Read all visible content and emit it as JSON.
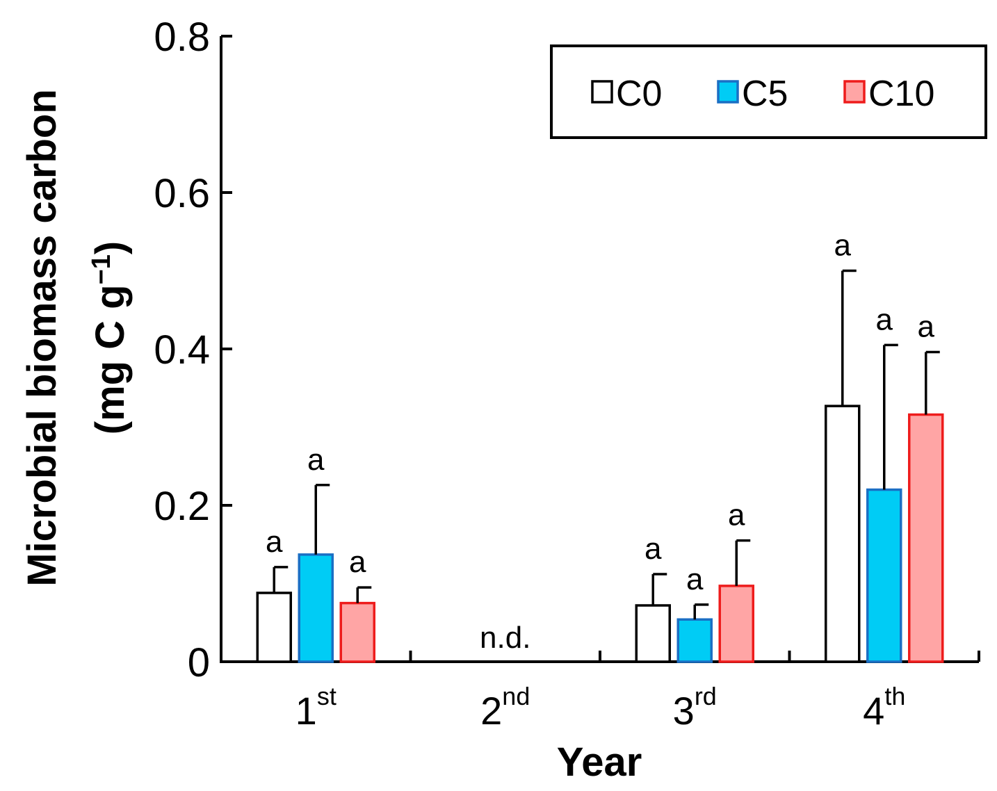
{
  "chart_data": {
    "type": "bar",
    "title": "",
    "xlabel": "Year",
    "ylabel": "Microbial biomass carbon",
    "ylabel_unit": "(mg C g",
    "ylabel_unit_exp": "−1",
    "ylabel_unit_close": ")",
    "ylim": [
      0,
      0.8
    ],
    "yticks": [
      {
        "value": 0,
        "label": "0"
      },
      {
        "value": 0.2,
        "label": "0.2"
      },
      {
        "value": 0.4,
        "label": "0.4"
      },
      {
        "value": 0.6,
        "label": "0.6"
      },
      {
        "value": 0.8,
        "label": "0.8"
      }
    ],
    "categories": [
      {
        "base": "1",
        "sup": "st"
      },
      {
        "base": "2",
        "sup": "nd"
      },
      {
        "base": "3",
        "sup": "rd"
      },
      {
        "base": "4",
        "sup": "th"
      }
    ],
    "category_notes": [
      null,
      "n.d.",
      null,
      null
    ],
    "series": [
      {
        "name": "C0",
        "fill": "#ffffff",
        "stroke": "#000000",
        "values": [
          0.088,
          null,
          0.072,
          0.327
        ],
        "errors": [
          0.033,
          null,
          0.04,
          0.173
        ],
        "significance": [
          "a",
          null,
          "a",
          "a"
        ]
      },
      {
        "name": "C5",
        "fill": "#00ccf5",
        "stroke": "#1a6fc4",
        "values": [
          0.137,
          null,
          0.054,
          0.22
        ],
        "errors": [
          0.089,
          null,
          0.019,
          0.185
        ],
        "significance": [
          "a",
          null,
          "a",
          "a"
        ]
      },
      {
        "name": "C10",
        "fill": "#ffa5a5",
        "stroke": "#ee1c1c",
        "values": [
          0.075,
          null,
          0.097,
          0.316
        ],
        "errors": [
          0.02,
          null,
          0.058,
          0.08
        ],
        "significance": [
          "a",
          null,
          "a",
          "a"
        ]
      }
    ],
    "legend": {
      "position": "top-right"
    },
    "grid": false
  }
}
